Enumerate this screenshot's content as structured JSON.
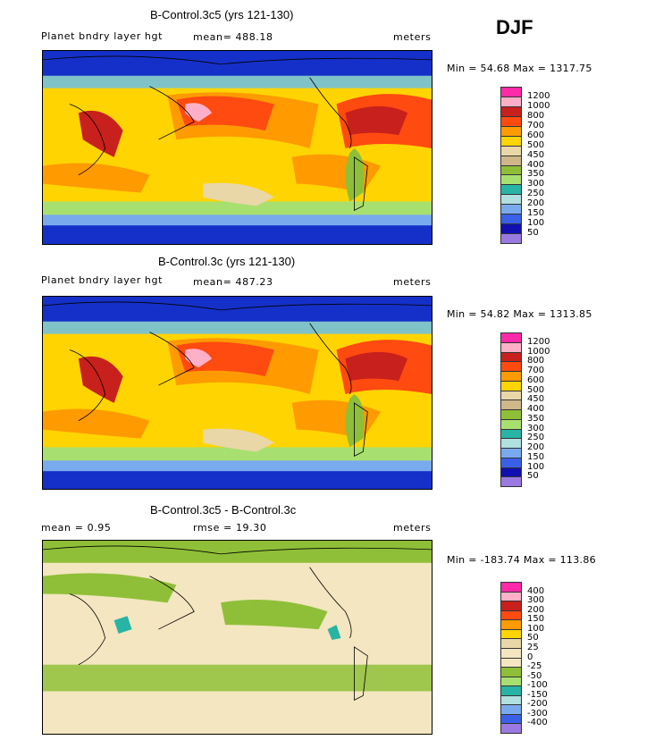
{
  "season": "DJF",
  "panels": [
    {
      "title": "B-Control.3c5 (yrs 121-130)",
      "variable": "Planet bndry layer hgt",
      "mean_text": "mean= 488.18",
      "units": "meters",
      "minmax_text": "Min =  54.68 Max = 1317.75",
      "legend_labels": [
        "1200",
        "1000",
        "800",
        "700",
        "600",
        "500",
        "450",
        "400",
        "350",
        "300",
        "250",
        "200",
        "150",
        "100",
        "50"
      ],
      "legend_colors": [
        "#ff2aa8",
        "#ffb0c8",
        "#c8201c",
        "#ff4a10",
        "#ff9a00",
        "#ffd400",
        "#e9d7a8",
        "#cfb78a",
        "#8fbf38",
        "#a8e070",
        "#28b4a4",
        "#b0e0e0",
        "#7aaaee",
        "#3a60e8",
        "#1010b0",
        "#9a7ae0"
      ]
    },
    {
      "title": "B-Control.3c (yrs 121-130)",
      "variable": "Planet bndry layer hgt",
      "mean_text": "mean= 487.23",
      "units": "meters",
      "minmax_text": "Min =  54.82 Max = 1313.85",
      "legend_labels": [
        "1200",
        "1000",
        "800",
        "700",
        "600",
        "500",
        "450",
        "400",
        "350",
        "300",
        "250",
        "200",
        "150",
        "100",
        "50"
      ],
      "legend_colors": [
        "#ff2aa8",
        "#ffb0c8",
        "#c8201c",
        "#ff4a10",
        "#ff9a00",
        "#ffd400",
        "#e9d7a8",
        "#cfb78a",
        "#8fbf38",
        "#a8e070",
        "#28b4a4",
        "#b0e0e0",
        "#7aaaee",
        "#3a60e8",
        "#1010b0",
        "#9a7ae0"
      ]
    },
    {
      "title": "B-Control.3c5 - B-Control.3c",
      "mean_text": "mean =    0.95",
      "rmse_text": "rmse =   19.30",
      "units": "meters",
      "minmax_text": "Min = -183.74 Max = 113.86",
      "legend_labels": [
        "400",
        "300",
        "200",
        "150",
        "100",
        "50",
        "25",
        "0",
        "-25",
        "-50",
        "-100",
        "-150",
        "-200",
        "-300",
        "-400"
      ],
      "legend_colors": [
        "#ff2aa8",
        "#ffb0c8",
        "#c8201c",
        "#ff4a10",
        "#ff9a00",
        "#ffd400",
        "#e9d7a8",
        "#f3e6c0",
        "#f3e6c0",
        "#8fbf38",
        "#a8e070",
        "#28b4a4",
        "#b0e0e0",
        "#7aaaee",
        "#3a60e8",
        "#9a7ae0"
      ]
    }
  ]
}
